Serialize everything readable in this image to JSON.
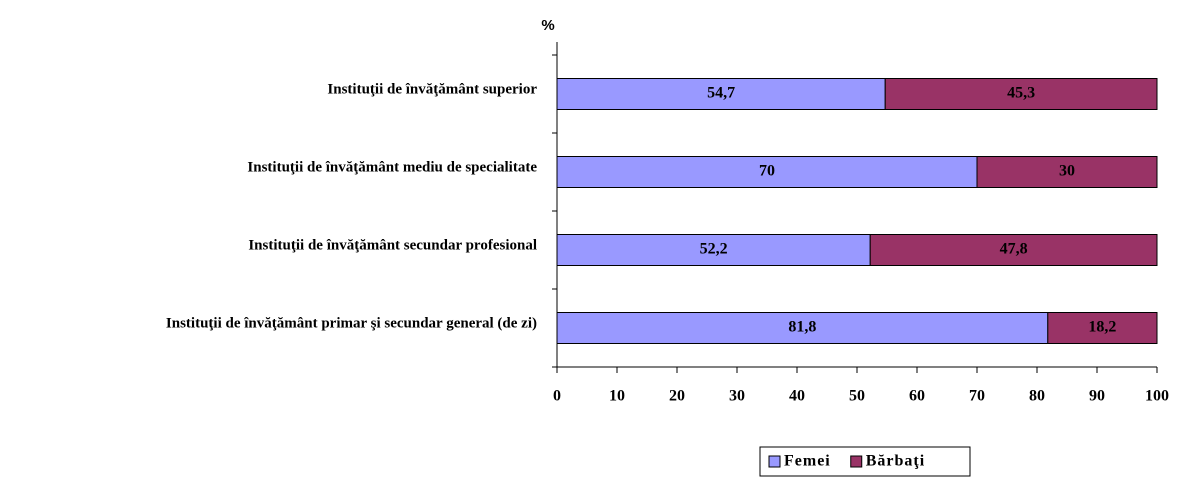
{
  "chart_data": {
    "type": "stacked-barh",
    "value_axis_label": "%",
    "categories": [
      "Instituţii de învăţământ superior",
      "Instituţii de învăţământ mediu de specialitate",
      "Instituţii de învăţământ secundar profesional",
      "Instituţii de învăţământ primar şi secundar general (de zi)"
    ],
    "series": [
      {
        "name": "Femei",
        "color": "#9999ff",
        "values": [
          54.7,
          70,
          52.2,
          81.8
        ],
        "value_labels": [
          "54,7",
          "70",
          "52,2",
          "81,8"
        ]
      },
      {
        "name": "Bărbaţi",
        "color": "#993366",
        "values": [
          45.3,
          30,
          47.8,
          18.2
        ],
        "value_labels": [
          "45,3",
          "30",
          "47,8",
          "18,2"
        ]
      }
    ],
    "xlim": [
      0,
      100
    ],
    "xticks": [
      0,
      10,
      20,
      30,
      40,
      50,
      60,
      70,
      80,
      90,
      100
    ],
    "legend": "bottom"
  }
}
